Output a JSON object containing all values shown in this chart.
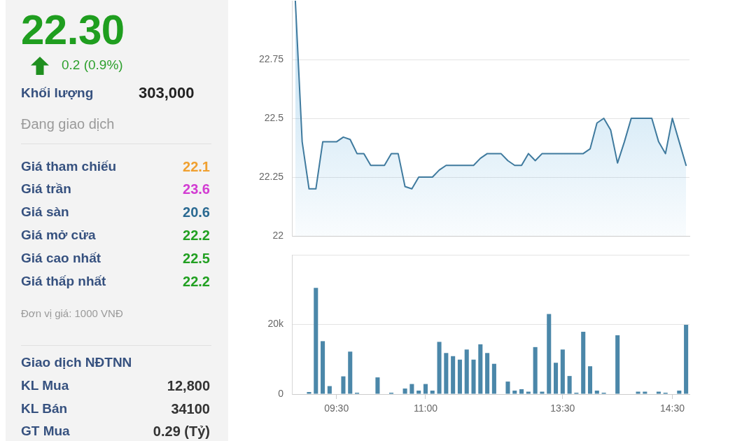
{
  "chart_data": [
    {
      "type": "other",
      "title": "22.30",
      "subtitle": "0.2 (0.9%)",
      "categories": [
        "Khối lượng",
        "Giá tham chiếu",
        "Giá trần",
        "Giá sàn",
        "Giá mở cửa",
        "Giá cao nhất",
        "Giá thấp nhất",
        "Giao dịch NĐTNN",
        "KL Mua",
        "KL Bán",
        "GT Mua"
      ],
      "value_labels": [
        "303,000",
        "22.1",
        "23.6",
        "20.6",
        "22.2",
        "22.5",
        "22.2",
        null,
        "12,800",
        "34100",
        "0.29 (Tỷ)"
      ],
      "annotations": [
        "Đang giao dịch",
        "Đơn vị giá: 1000 VNĐ"
      ]
    },
    {
      "type": "area",
      "categories": [
        null,
        null,
        null,
        null,
        null,
        null,
        null,
        null,
        null,
        null,
        null,
        null,
        null,
        null,
        null,
        null,
        null,
        null,
        null,
        null,
        null,
        null,
        null,
        null,
        null,
        null,
        null,
        null,
        null,
        null,
        null,
        null,
        null,
        null,
        null,
        null,
        null,
        null,
        null,
        null,
        null,
        null,
        null,
        null,
        null,
        null,
        null,
        null,
        null,
        null,
        null,
        null,
        null,
        null,
        null,
        null,
        null,
        null
      ],
      "values": [
        23,
        22.4,
        22.2,
        22.2,
        22.4,
        22.4,
        22.4,
        22.42,
        22.41,
        22.35,
        22.35,
        22.3,
        22.3,
        22.3,
        22.35,
        22.35,
        22.21,
        22.2,
        22.25,
        22.25,
        22.25,
        22.28,
        22.3,
        22.3,
        22.3,
        22.3,
        22.3,
        22.33,
        22.35,
        22.35,
        22.35,
        22.32,
        22.3,
        22.3,
        22.35,
        22.32,
        22.35,
        22.35,
        22.35,
        22.35,
        22.35,
        22.35,
        22.35,
        22.37,
        22.48,
        22.5,
        22.45,
        22.31,
        22.4,
        22.5,
        22.5,
        22.5,
        22.5,
        22.4,
        22.35,
        22.5,
        22.4,
        22.3
      ],
      "color": "#3f7a9e",
      "ylim": [
        22,
        23
      ],
      "yticks": [
        22,
        22.25,
        22.5,
        22.75
      ],
      "grid": "y",
      "tick_labels": "y"
    },
    {
      "type": "bar",
      "categories": [
        null,
        null,
        null,
        null,
        null,
        null,
        "09:30",
        null,
        null,
        null,
        null,
        null,
        null,
        null,
        null,
        null,
        null,
        null,
        null,
        "11:00",
        null,
        null,
        null,
        null,
        null,
        null,
        null,
        null,
        null,
        null,
        null,
        null,
        null,
        null,
        null,
        null,
        null,
        null,
        null,
        "13:30",
        null,
        null,
        null,
        null,
        null,
        null,
        null,
        null,
        null,
        null,
        null,
        null,
        null,
        null,
        null,
        "14:30",
        null,
        null
      ],
      "values": [
        null,
        null,
        600,
        30500,
        15200,
        2300,
        null,
        5100,
        12200,
        400,
        null,
        null,
        4800,
        null,
        400,
        null,
        1600,
        2900,
        1000,
        2900,
        1000,
        15000,
        11800,
        10900,
        9900,
        12800,
        9900,
        14300,
        11800,
        8700,
        null,
        3600,
        1000,
        1400,
        700,
        13500,
        700,
        23000,
        9000,
        12800,
        5200,
        400,
        17900,
        8000,
        1000,
        400,
        null,
        16900,
        null,
        null,
        700,
        700,
        null,
        700,
        400,
        null,
        1000,
        19900
      ],
      "color": "#4b87a9",
      "ylim": [
        0,
        40000
      ],
      "yticks": [
        0,
        {
          "value": 20000,
          "label": "20k"
        },
        {
          "value": 40000,
          "label": null
        }
      ],
      "grid": "y"
    }
  ]
}
